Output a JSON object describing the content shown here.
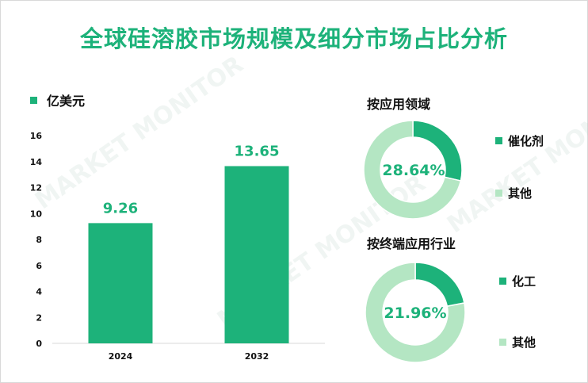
{
  "title": "全球硅溶胶市场规模及细分市场占比分析",
  "legend_label": "亿美元",
  "colors": {
    "primary": "#1db27a",
    "light": "#b4e6c3",
    "text": "#111111"
  },
  "chart_data": [
    {
      "type": "bar",
      "categories": [
        "2024",
        "2032"
      ],
      "values": [
        9.26,
        13.65
      ],
      "data_labels": [
        "9.26",
        "13.65"
      ],
      "ylim": [
        0,
        16
      ],
      "yticks": [
        0,
        2,
        4,
        6,
        8,
        10,
        12,
        14,
        16
      ],
      "ylabel": "亿美元",
      "grid": false
    },
    {
      "type": "pie",
      "title": "按应用领域",
      "labels": [
        "催化剂",
        "其他"
      ],
      "values": [
        28.64,
        71.36
      ],
      "center_label": "28.64%"
    },
    {
      "type": "pie",
      "title": "按终端应用行业",
      "labels": [
        "化工",
        "其他"
      ],
      "values": [
        21.96,
        78.04
      ],
      "center_label": "21.96%"
    }
  ]
}
